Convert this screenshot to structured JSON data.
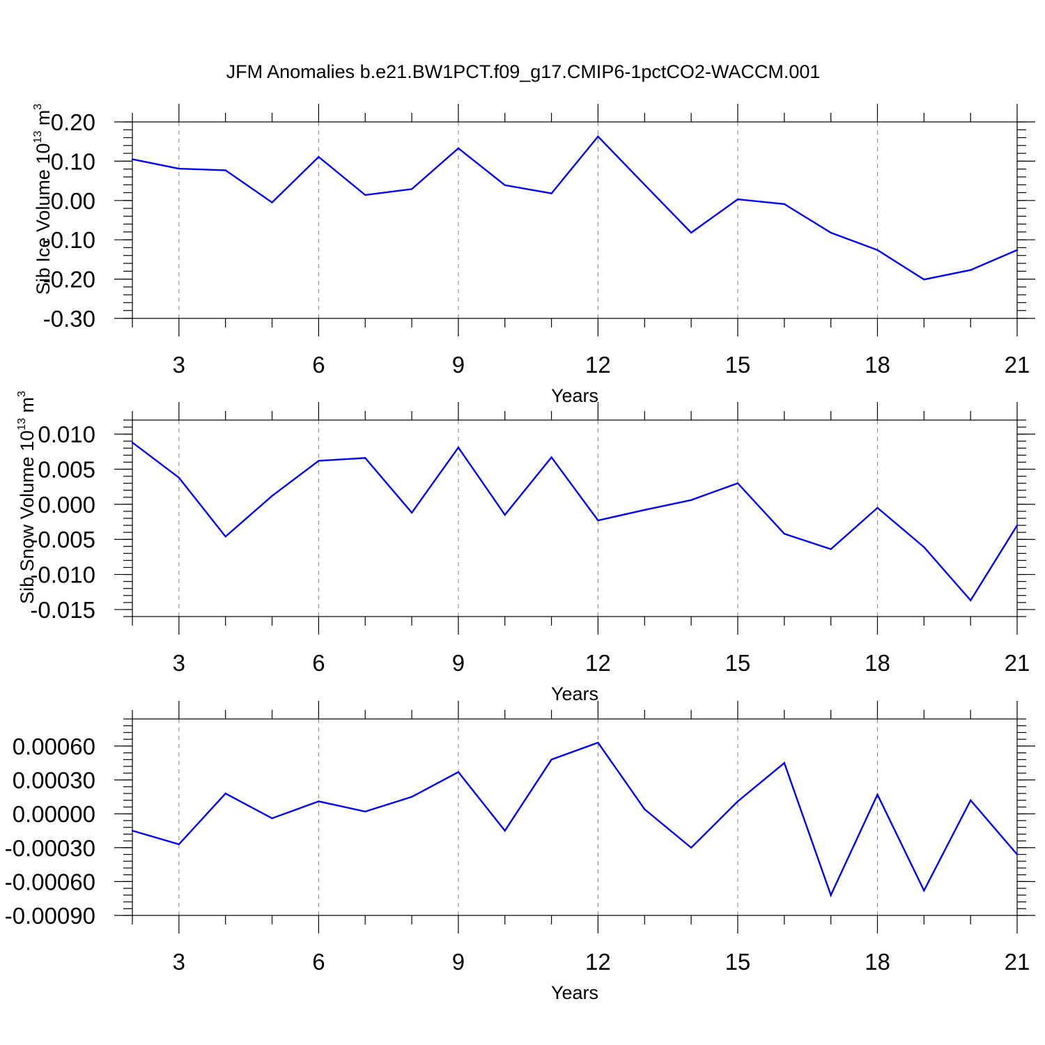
{
  "title": "JFM Anomalies b.e21.BW1PCT.f09_g17.CMIP6-1pctCO2-WACCM.001",
  "colors": {
    "line": "#0000ff",
    "axis": "#000000",
    "grid": "#808080"
  },
  "chart_data": [
    {
      "type": "line",
      "ylabel": {
        "main": "Sib Ice Volume 10",
        "exp": "13",
        "unit": " m",
        "unitexp": "3"
      },
      "xlabel": "Years",
      "xlim": [
        2,
        21
      ],
      "ylim": [
        -0.3,
        0.2
      ],
      "xticks": [
        3,
        6,
        9,
        12,
        15,
        18,
        21
      ],
      "yticks": [
        -0.3,
        -0.2,
        -0.1,
        0.0,
        0.1,
        0.2
      ],
      "ytick_labels": [
        "-0.30",
        "-0.20",
        "-0.10",
        "0.00",
        "0.10",
        "0.20"
      ],
      "yminor_step": 0.02,
      "x": [
        2,
        3,
        4,
        5,
        6,
        7,
        8,
        9,
        10,
        11,
        12,
        13,
        14,
        15,
        16,
        17,
        18,
        19,
        20,
        21
      ],
      "values": [
        0.105,
        0.081,
        0.077,
        -0.005,
        0.111,
        0.014,
        0.029,
        0.133,
        0.039,
        0.018,
        0.163,
        0.04,
        -0.082,
        0.003,
        -0.009,
        -0.082,
        -0.126,
        -0.201,
        -0.177,
        -0.126
      ]
    },
    {
      "type": "line",
      "ylabel": {
        "main": "Sib Snow Volume 10",
        "exp": "13",
        "unit": " m",
        "unitexp": "3"
      },
      "xlabel": "Years",
      "xlim": [
        2,
        21
      ],
      "ylim": [
        -0.016,
        0.012
      ],
      "xticks": [
        3,
        6,
        9,
        12,
        15,
        18,
        21
      ],
      "yticks": [
        -0.015,
        -0.01,
        -0.005,
        0.0,
        0.005,
        0.01
      ],
      "ytick_labels": [
        "-0.015",
        "-0.010",
        "-0.005",
        "0.000",
        "0.005",
        "0.010"
      ],
      "yminor_step": 0.001,
      "x": [
        2,
        3,
        4,
        5,
        6,
        7,
        8,
        9,
        10,
        11,
        12,
        13,
        14,
        15,
        16,
        17,
        18,
        19,
        20,
        21
      ],
      "values": [
        0.0088,
        0.0038,
        -0.0046,
        0.0012,
        0.0062,
        0.0066,
        -0.0012,
        0.0081,
        -0.0015,
        0.0067,
        -0.0023,
        -0.0008,
        0.0006,
        0.003,
        -0.0042,
        -0.0064,
        -0.0005,
        -0.0061,
        -0.0137,
        -0.003
      ]
    },
    {
      "type": "line",
      "ylabel": null,
      "xlabel": "Years",
      "xlim": [
        2,
        21
      ],
      "ylim": [
        -0.0009,
        0.00084
      ],
      "xticks": [
        3,
        6,
        9,
        12,
        15,
        18,
        21
      ],
      "yticks": [
        -0.0009,
        -0.0006,
        -0.0003,
        0.0,
        0.0003,
        0.0006
      ],
      "ytick_labels": [
        "-0.00090",
        "-0.00060",
        "-0.00030",
        "0.00000",
        "0.00030",
        "0.00060"
      ],
      "yminor_step": 6e-05,
      "x": [
        2,
        3,
        4,
        5,
        6,
        7,
        8,
        9,
        10,
        11,
        12,
        13,
        14,
        15,
        16,
        17,
        18,
        19,
        20,
        21
      ],
      "values": [
        -0.00015,
        -0.00027,
        0.00018,
        -4e-05,
        0.00011,
        2e-05,
        0.00015,
        0.00037,
        -0.00015,
        0.00048,
        0.00063,
        4e-05,
        -0.0003,
        0.00011,
        0.00045,
        -0.00072,
        0.00017,
        -0.00068,
        0.00012,
        -0.00036
      ]
    }
  ]
}
